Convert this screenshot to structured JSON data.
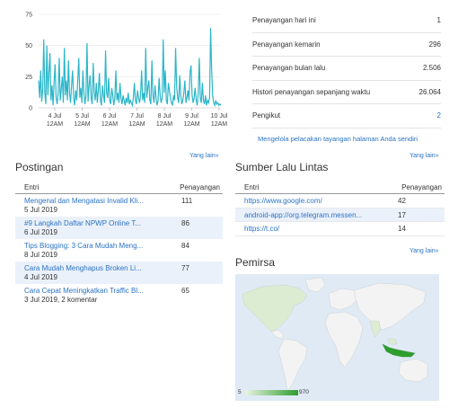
{
  "chart_data": {
    "type": "line",
    "yticks": [
      "75",
      "50",
      "25",
      "0"
    ],
    "ylim": [
      0,
      75
    ],
    "x_tick_labels": [
      [
        "4 Jul",
        "12AM"
      ],
      [
        "5 Jul",
        "12AM"
      ],
      [
        "6 Jul",
        "12AM"
      ],
      [
        "7 Jul",
        "12AM"
      ],
      [
        "8 Jul",
        "12AM"
      ],
      [
        "9 Jul",
        "12AM"
      ],
      [
        "10 Jul",
        "12AM"
      ]
    ],
    "series_color": "#2bb6c9",
    "values": [
      22,
      8,
      30,
      5,
      15,
      55,
      12,
      3,
      50,
      10,
      28,
      44,
      6,
      18,
      2,
      20,
      35,
      8,
      3,
      12,
      40,
      6,
      15,
      25,
      4,
      48,
      10,
      22,
      6,
      38,
      12,
      4,
      18,
      30,
      8,
      2,
      14,
      6,
      22,
      40,
      8,
      16,
      4,
      30,
      12,
      3,
      10,
      52,
      5,
      18,
      26,
      8,
      3,
      36,
      12,
      6,
      20,
      4,
      14,
      28,
      6,
      2,
      18,
      10,
      4,
      46,
      12,
      8,
      24,
      6,
      3,
      16,
      10,
      2,
      8,
      30,
      6,
      12,
      4,
      20,
      8,
      3,
      10,
      6,
      2,
      8,
      4,
      12,
      3,
      6,
      4,
      2,
      8,
      20,
      6,
      3,
      14,
      8,
      4,
      10,
      30,
      6,
      12,
      4,
      48,
      8,
      16,
      22,
      6,
      3,
      38,
      10,
      4,
      18,
      8,
      2,
      6,
      24,
      10,
      4,
      8,
      55,
      12,
      30,
      6,
      3,
      20,
      14,
      8,
      4,
      2,
      10,
      6,
      48,
      18,
      8,
      4,
      26,
      10,
      3,
      6,
      12,
      22,
      4,
      8,
      14,
      6,
      28,
      34,
      10,
      4,
      8,
      16,
      6,
      2,
      12,
      40,
      8,
      4,
      20,
      6,
      3,
      10,
      2,
      6,
      4,
      8,
      64,
      30,
      10,
      4,
      2,
      6,
      3,
      4,
      2,
      3,
      2
    ]
  },
  "stats": [
    {
      "label": "Penayangan hari ini",
      "value": "1",
      "link": false
    },
    {
      "label": "Penayangan kemarin",
      "value": "296",
      "link": false
    },
    {
      "label": "Penayangan bulan lalu",
      "value": "2.506",
      "link": false
    },
    {
      "label": "Histori penayangan sepanjang waktu",
      "value": "26.064",
      "link": false
    },
    {
      "label": "Pengikut",
      "value": "2",
      "link": true
    }
  ],
  "manage_link": "Mengelola pelacakan tayangan halaman Anda sendiri",
  "more_label": "Yang lain»",
  "posts": {
    "title": "Postingan",
    "col_entry": "Entri",
    "col_views": "Penayangan",
    "rows": [
      {
        "title": "Mengenal dan Mengatasi Invalid Kli...",
        "date": "5 Jul 2019",
        "views": "111"
      },
      {
        "title": "#9 Langkah Daftar NPWP Online T...",
        "date": "6 Jul 2019",
        "views": "86"
      },
      {
        "title": "Tips Blogging: 3 Cara Mudah Meng...",
        "date": "8 Jul 2019",
        "views": "84"
      },
      {
        "title": "Cara Mudah Menghapus Broken Li...",
        "date": "4 Jul 2019",
        "views": "77"
      },
      {
        "title": "Cara Cepat Meningkatkan Traffic Bl...",
        "date": "3 Jul 2019, 2 komentar",
        "views": "65"
      }
    ]
  },
  "sources": {
    "title": "Sumber Lalu Lintas",
    "col_entry": "Entri",
    "col_views": "Penayangan",
    "rows": [
      {
        "url": "https://www.google.com/",
        "views": "42"
      },
      {
        "url": "android-app://org.telegram.messen...",
        "views": "17"
      },
      {
        "url": "https://t.co/",
        "views": "14"
      }
    ]
  },
  "audience": {
    "title": "Pemirsa",
    "legend_min": "5",
    "legend_max": "970",
    "map_colors": {
      "ocean": "#dfeaf5",
      "land": "#f3f3f3",
      "low": "#dcecd3",
      "high": "#2e9e2e"
    }
  }
}
